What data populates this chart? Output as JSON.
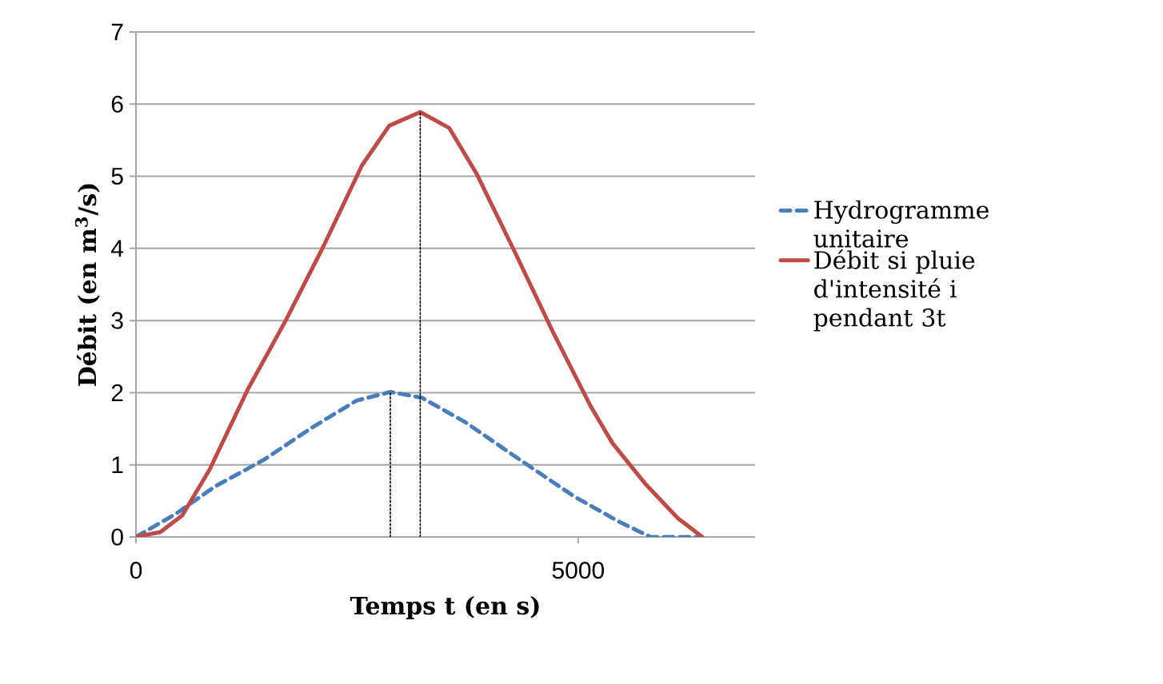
{
  "chart_data": {
    "type": "line",
    "xlabel": "Temps t (en s)",
    "ylabel": "Débit (en m$^{3}$/s)",
    "xlim": [
      0,
      7000
    ],
    "ylim": [
      0,
      7
    ],
    "xticks": [
      0,
      5000
    ],
    "yticks": [
      0,
      1,
      2,
      3,
      4,
      5,
      6,
      7
    ],
    "grid": "y",
    "legend": "right",
    "series": [
      {
        "name": "Hydrogramme unitaire",
        "color": "#4a7ebb",
        "line_style": "dashed",
        "x": [
          0,
          462,
          893,
          1447,
          1995,
          2494,
          2876,
          3233,
          3725,
          4341,
          4957,
          5450,
          5819,
          6373
        ],
        "values": [
          0,
          0.33,
          0.7,
          1.07,
          1.52,
          1.89,
          2.01,
          1.93,
          1.59,
          1.07,
          0.56,
          0.22,
          0,
          0
        ]
      },
      {
        "name": "Débit si pluie d'intensité i pendant 3t",
        "color": "#be4b48",
        "line_style": "solid",
        "x": [
          0,
          277,
          523,
          831,
          1262,
          1693,
          2124,
          2555,
          2863,
          3214,
          3541,
          3849,
          4280,
          4711,
          5142,
          5388,
          5757,
          6127,
          6404
        ],
        "values": [
          0,
          0.07,
          0.3,
          0.93,
          2.04,
          3.0,
          4.04,
          5.15,
          5.7,
          5.89,
          5.67,
          5.04,
          3.96,
          2.85,
          1.81,
          1.3,
          0.74,
          0.26,
          0
        ]
      },
      {
        "color": "#000000",
        "line_style": "dotted",
        "x": [
          2876,
          2876
        ],
        "values": [
          0,
          2.01
        ]
      },
      {
        "color": "#000000",
        "line_style": "dotted",
        "x": [
          3214,
          3214
        ],
        "values": [
          0,
          5.89
        ]
      }
    ]
  }
}
